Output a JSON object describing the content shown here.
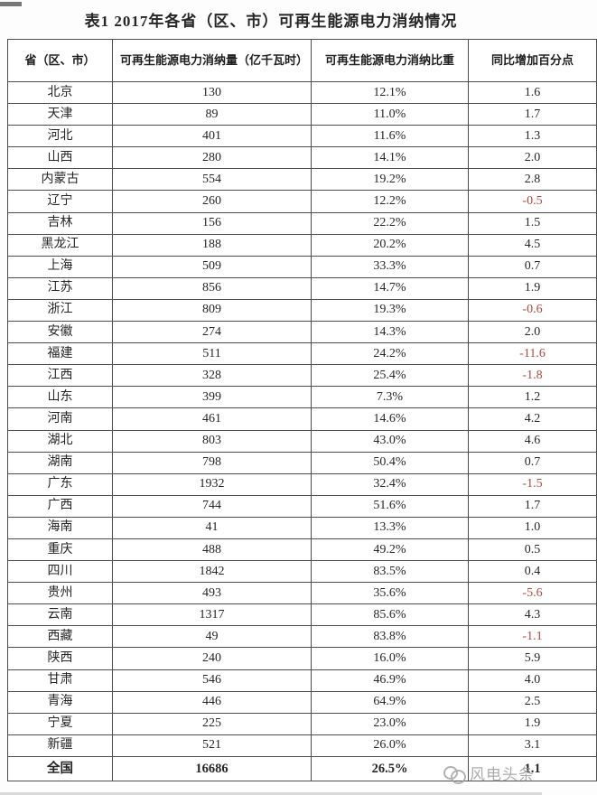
{
  "page": {
    "title": "表1  2017年各省（区、市）可再生能源电力消纳情况"
  },
  "table": {
    "headers": [
      "省（区、市）",
      "可再生能源电力消纳量（亿千瓦时）",
      "可再生能源电力消纳比重",
      "同比增加百分点"
    ],
    "negative_color": "#b1493f",
    "rows": [
      {
        "region": "北京",
        "amount": "130",
        "share": "12.1%",
        "change": "1.6"
      },
      {
        "region": "天津",
        "amount": "89",
        "share": "11.0%",
        "change": "1.7"
      },
      {
        "region": "河北",
        "amount": "401",
        "share": "11.6%",
        "change": "1.3"
      },
      {
        "region": "山西",
        "amount": "280",
        "share": "14.1%",
        "change": "2.0"
      },
      {
        "region": "内蒙古",
        "amount": "554",
        "share": "19.2%",
        "change": "2.8"
      },
      {
        "region": "辽宁",
        "amount": "260",
        "share": "12.2%",
        "change": "-0.5"
      },
      {
        "region": "吉林",
        "amount": "156",
        "share": "22.2%",
        "change": "1.5"
      },
      {
        "region": "黑龙江",
        "amount": "188",
        "share": "20.2%",
        "change": "4.5"
      },
      {
        "region": "上海",
        "amount": "509",
        "share": "33.3%",
        "change": "0.7"
      },
      {
        "region": "江苏",
        "amount": "856",
        "share": "14.7%",
        "change": "1.9"
      },
      {
        "region": "浙江",
        "amount": "809",
        "share": "19.3%",
        "change": "-0.6"
      },
      {
        "region": "安徽",
        "amount": "274",
        "share": "14.3%",
        "change": "2.0"
      },
      {
        "region": "福建",
        "amount": "511",
        "share": "24.2%",
        "change": "-11.6"
      },
      {
        "region": "江西",
        "amount": "328",
        "share": "25.4%",
        "change": "-1.8"
      },
      {
        "region": "山东",
        "amount": "399",
        "share": "7.3%",
        "change": "1.2"
      },
      {
        "region": "河南",
        "amount": "461",
        "share": "14.6%",
        "change": "4.2"
      },
      {
        "region": "湖北",
        "amount": "803",
        "share": "43.0%",
        "change": "4.6"
      },
      {
        "region": "湖南",
        "amount": "798",
        "share": "50.4%",
        "change": "0.7"
      },
      {
        "region": "广东",
        "amount": "1932",
        "share": "32.4%",
        "change": "-1.5"
      },
      {
        "region": "广西",
        "amount": "744",
        "share": "51.6%",
        "change": "1.7"
      },
      {
        "region": "海南",
        "amount": "41",
        "share": "13.3%",
        "change": "1.0"
      },
      {
        "region": "重庆",
        "amount": "488",
        "share": "49.2%",
        "change": "0.5"
      },
      {
        "region": "四川",
        "amount": "1842",
        "share": "83.5%",
        "change": "0.4"
      },
      {
        "region": "贵州",
        "amount": "493",
        "share": "35.6%",
        "change": "-5.6"
      },
      {
        "region": "云南",
        "amount": "1317",
        "share": "85.6%",
        "change": "4.3"
      },
      {
        "region": "西藏",
        "amount": "49",
        "share": "83.8%",
        "change": "-1.1"
      },
      {
        "region": "陕西",
        "amount": "240",
        "share": "16.0%",
        "change": "5.9"
      },
      {
        "region": "甘肃",
        "amount": "546",
        "share": "46.9%",
        "change": "4.0"
      },
      {
        "region": "青海",
        "amount": "446",
        "share": "64.9%",
        "change": "2.5"
      },
      {
        "region": "宁夏",
        "amount": "225",
        "share": "23.0%",
        "change": "1.9"
      },
      {
        "region": "新疆",
        "amount": "521",
        "share": "26.0%",
        "change": "3.1"
      },
      {
        "region": "全国",
        "amount": "16686",
        "share": "26.5%",
        "change": "1.1",
        "bold": true
      }
    ]
  },
  "watermark": {
    "label": "风电头条"
  }
}
